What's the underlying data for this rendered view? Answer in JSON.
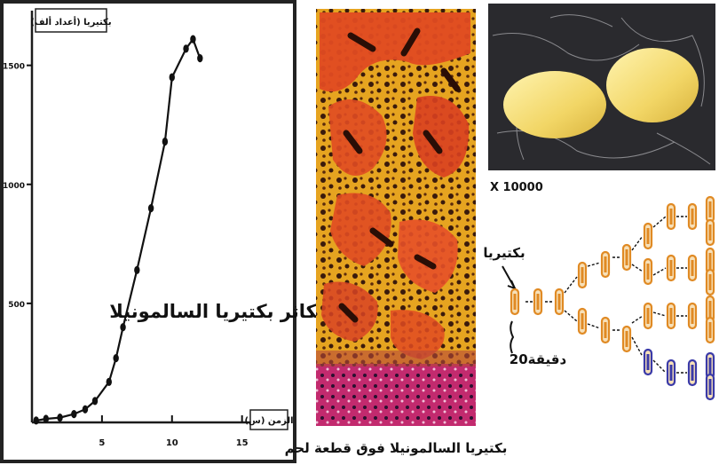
{
  "growth_panel": {
    "y_axis_title": "بكتيريا (أعداد ألف)",
    "x_axis_title": "الزمن (س)",
    "annotation": "تكاثر بكتيريا السالمونيلا",
    "y_ticks": [
      "500",
      "1000",
      "1500"
    ],
    "x_ticks": [
      "5",
      "10",
      "15"
    ]
  },
  "chart_data": {
    "type": "line",
    "title": "",
    "xlabel": "الزمن (س)",
    "ylabel": "بكتيريا (أعداد ألف)",
    "xlim": [
      0,
      18
    ],
    "ylim": [
      0,
      1700
    ],
    "x_ticks": [
      5,
      10,
      15
    ],
    "y_ticks": [
      500,
      1000,
      1500
    ],
    "grid": false,
    "series": [
      {
        "name": "",
        "x": [
          0.3,
          1,
          2,
          3,
          3.8,
          4.5,
          5.5,
          6,
          6.5,
          7.5,
          8.5,
          9.5,
          10,
          11,
          11.5,
          12
        ],
        "y": [
          8,
          15,
          20,
          35,
          55,
          90,
          170,
          270,
          400,
          640,
          900,
          1180,
          1450,
          1570,
          1610,
          1530
        ]
      }
    ]
  },
  "micrograph": {
    "caption": "بكتيريا السالمونيلا فوق قطعة لحم"
  },
  "electron_micrograph": {
    "magnification": "X 10000"
  },
  "division_diagram": {
    "bacteria_label": "بكتيريا",
    "time_label": "20دقيقة"
  },
  "colors": {
    "tissue_orange": "#e04b22",
    "tissue_dark": "#3a1a0c",
    "tissue_pink": "#c22a6e",
    "bacterium_fill": "#e08a24",
    "bacterium_blue": "#3a3aa8",
    "cell_yellow": "#f2d666"
  }
}
